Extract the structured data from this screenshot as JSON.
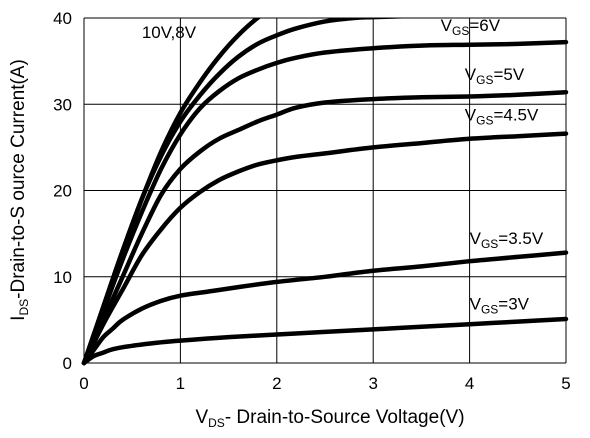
{
  "chart_data": {
    "type": "line",
    "title": "",
    "xlabel": {
      "main": "V",
      "sub": "DS",
      "rest": "- Drain-to-Source Voltage(V)"
    },
    "ylabel": {
      "main": "I",
      "sub": "DS",
      "rest": "-Drain-to-S ource Current(A)"
    },
    "xlim": [
      0,
      5
    ],
    "ylim": [
      0,
      40
    ],
    "xticks": [
      "0",
      "1",
      "2",
      "3",
      "4",
      "5"
    ],
    "yticks": [
      "0",
      "10",
      "20",
      "30",
      "40"
    ],
    "grid": true,
    "annotations": [
      {
        "main": "10V,8V",
        "sub": "",
        "rest": "",
        "x": 0.6,
        "y": 37.7
      },
      {
        "main": "V",
        "sub": "GS",
        "rest": "=6V",
        "x": 3.7,
        "y": 38.5
      },
      {
        "main": "V",
        "sub": "GS",
        "rest": "=5V",
        "x": 3.95,
        "y": 32.8
      },
      {
        "main": "V",
        "sub": "GS",
        "rest": "=4.5V",
        "x": 3.95,
        "y": 28.1
      },
      {
        "main": "V",
        "sub": "GS",
        "rest": "=3.5V",
        "x": 4.0,
        "y": 13.8
      },
      {
        "main": "V",
        "sub": "GS",
        "rest": "=3V",
        "x": 4.0,
        "y": 6.2
      }
    ],
    "series": [
      {
        "x": [
          0,
          0.2,
          0.4,
          0.6,
          0.8,
          1.0,
          1.2,
          1.4,
          1.6,
          1.8,
          2.0
        ],
        "y": [
          0,
          6.5,
          13,
          19,
          24.5,
          29,
          32.5,
          35.5,
          38,
          40,
          41.5
        ]
      },
      {
        "x": [
          0,
          0.2,
          0.4,
          0.6,
          0.8,
          1.0,
          1.2,
          1.4,
          1.6,
          1.8,
          2.0,
          2.2,
          2.5,
          2.8,
          3.0,
          3.3
        ],
        "y": [
          0,
          6.5,
          13,
          19,
          24,
          28,
          31,
          33.5,
          35.5,
          37,
          38,
          38.8,
          39.6,
          40,
          40.1,
          40.2
        ]
      },
      {
        "x": [
          0,
          0.2,
          0.4,
          0.6,
          0.8,
          1.0,
          1.2,
          1.4,
          1.6,
          1.8,
          2.0,
          2.2,
          2.5,
          3.0,
          3.5,
          4.0,
          4.5,
          5.0
        ],
        "y": [
          0,
          6,
          12,
          17.5,
          22.5,
          26.5,
          29.5,
          31.5,
          33,
          34,
          34.8,
          35.4,
          36,
          36.5,
          36.8,
          36.9,
          37,
          37.2
        ]
      },
      {
        "x": [
          0,
          0.2,
          0.4,
          0.6,
          0.8,
          1.0,
          1.2,
          1.4,
          1.6,
          1.8,
          2.0,
          2.2,
          2.5,
          3.0,
          3.5,
          4.0,
          4.5,
          5.0
        ],
        "y": [
          0,
          5,
          10,
          15,
          19.5,
          22.5,
          24.5,
          26,
          27,
          28,
          28.8,
          29.6,
          30.2,
          30.6,
          30.8,
          30.9,
          31.1,
          31.4
        ]
      },
      {
        "x": [
          0,
          0.2,
          0.4,
          0.6,
          0.8,
          1.0,
          1.2,
          1.4,
          1.6,
          1.8,
          2.0,
          2.2,
          2.5,
          3.0,
          3.5,
          4.0,
          4.5,
          5.0
        ],
        "y": [
          0,
          4.5,
          8.5,
          12.5,
          15.5,
          18,
          19.8,
          21.2,
          22.2,
          23,
          23.5,
          23.9,
          24.3,
          25,
          25.5,
          26,
          26.3,
          26.6
        ]
      },
      {
        "x": [
          0,
          0.1,
          0.2,
          0.3,
          0.4,
          0.6,
          0.8,
          1.0,
          1.3,
          1.6,
          2.0,
          2.5,
          3.0,
          3.5,
          4.0,
          4.5,
          5.0
        ],
        "y": [
          0,
          1.5,
          3,
          4,
          5,
          6.3,
          7.2,
          7.8,
          8.3,
          8.8,
          9.4,
          10,
          10.7,
          11.2,
          11.8,
          12.3,
          12.8
        ]
      },
      {
        "x": [
          0,
          0.1,
          0.2,
          0.3,
          0.5,
          0.8,
          1.0,
          1.5,
          2.0,
          2.5,
          3.0,
          3.5,
          4.0,
          4.5,
          5.0
        ],
        "y": [
          0,
          0.8,
          1.2,
          1.6,
          2.0,
          2.4,
          2.6,
          3.0,
          3.3,
          3.6,
          3.9,
          4.2,
          4.5,
          4.8,
          5.1
        ]
      }
    ]
  }
}
